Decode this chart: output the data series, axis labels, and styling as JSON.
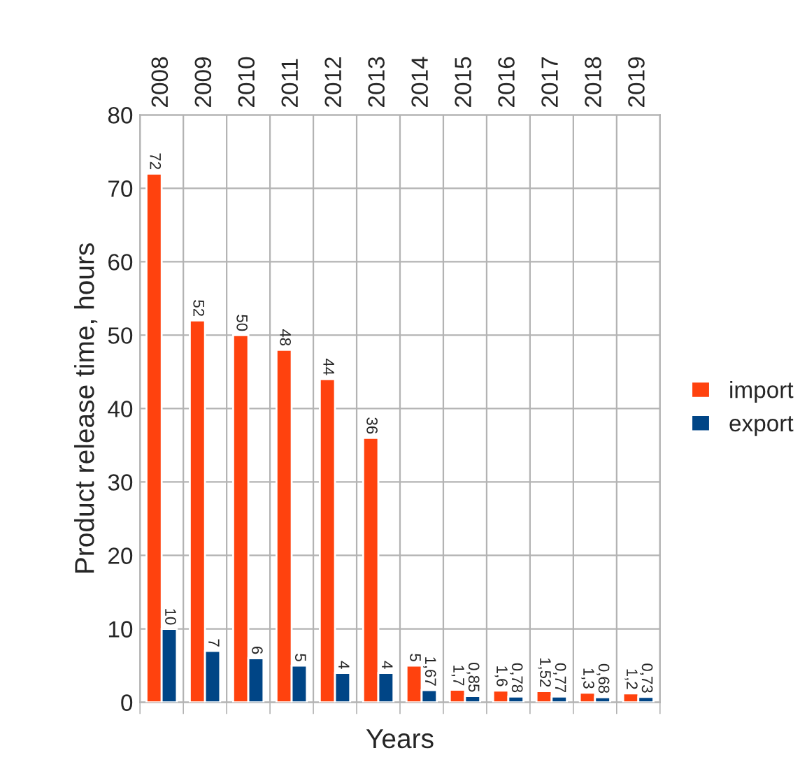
{
  "chart_data": {
    "type": "bar",
    "xlabel": "Years",
    "ylabel": "Product release time, hours",
    "categories": [
      "2008",
      "2009",
      "2010",
      "2011",
      "2012",
      "2013",
      "2014",
      "2015",
      "2016",
      "2017",
      "2018",
      "2019"
    ],
    "series": [
      {
        "name": "import",
        "color": "#ff420e",
        "values": [
          72,
          52,
          50,
          48,
          44,
          36,
          5,
          1.7,
          1.6,
          1.52,
          1.3,
          1.2
        ],
        "value_labels": [
          "72",
          "52",
          "50",
          "48",
          "44",
          "36",
          "5",
          "1,7",
          "1,6",
          "1,52",
          "1,3",
          "1,2"
        ]
      },
      {
        "name": "export",
        "color": "#004586",
        "values": [
          10,
          7,
          6,
          5,
          4,
          4,
          1.67,
          0.85,
          0.78,
          0.77,
          0.68,
          0.73
        ],
        "value_labels": [
          "10",
          "7",
          "6",
          "5",
          "4",
          "4",
          "1,67",
          "0,85",
          "0,78",
          "0,77",
          "0,68",
          "0,73"
        ]
      }
    ],
    "ylim": [
      0,
      80
    ],
    "yticks": [
      0,
      10,
      20,
      30,
      40,
      50,
      60,
      70,
      80
    ],
    "grid": true,
    "legend": "right"
  }
}
